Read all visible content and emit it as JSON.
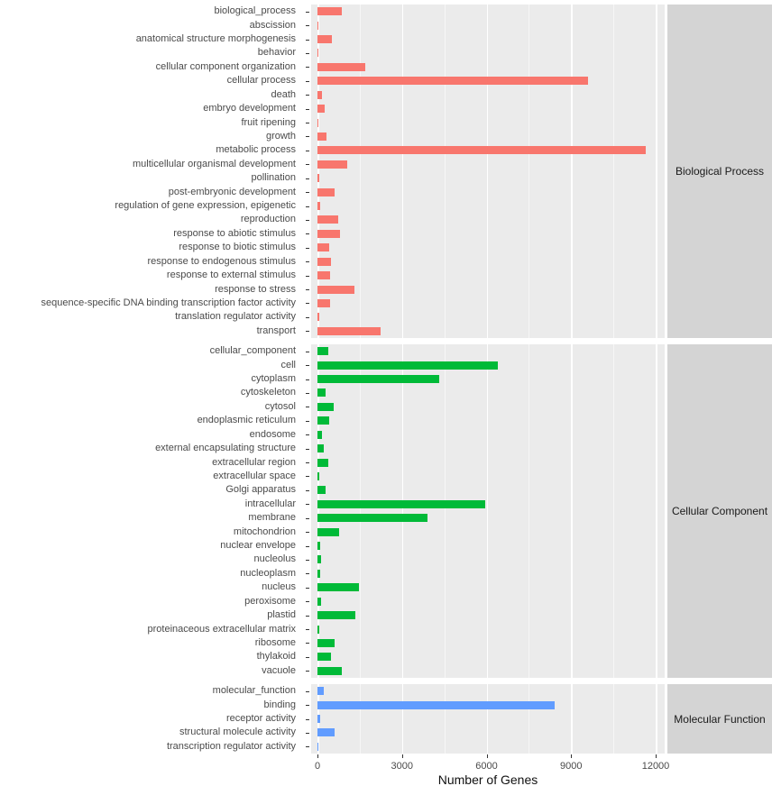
{
  "chart_data": {
    "type": "bar",
    "orientation": "horizontal",
    "title": "",
    "xlabel": "Number of Genes",
    "ylabel": "",
    "xlim": [
      0,
      12400
    ],
    "x_ticks": [
      0,
      3000,
      6000,
      9000,
      12000
    ],
    "x_tick_labels": [
      "0",
      "3000",
      "6000",
      "9000",
      "12000"
    ],
    "x_minor_ticks": [
      1500,
      4500,
      7500,
      10500
    ],
    "grid": true,
    "legend": "none",
    "panel_bg": "#EBEBEB",
    "strip_bg": "#D4D4D4",
    "grid_color": "#FFFFFF",
    "axis_text_color": "#4A4A4A",
    "facets": [
      {
        "label": "Biological Process",
        "color": "#F8766D",
        "categories": [
          "biological_process",
          "abscission",
          "anatomical structure morphogenesis",
          "behavior",
          "cellular component organization",
          "cellular process",
          "death",
          "embryo development",
          "fruit ripening",
          "growth",
          "metabolic process",
          "multicellular organismal development",
          "pollination",
          "post-embryonic development",
          "regulation of gene expression, epigenetic",
          "reproduction",
          "response to abiotic stimulus",
          "response to biotic stimulus",
          "response to endogenous stimulus",
          "response to external stimulus",
          "response to stress",
          "sequence-specific DNA binding transcription factor activity",
          "translation regulator activity",
          "transport"
        ],
        "values": [
          850,
          15,
          500,
          25,
          1700,
          9600,
          160,
          260,
          25,
          320,
          11650,
          1050,
          60,
          610,
          100,
          740,
          800,
          420,
          480,
          450,
          1310,
          450,
          60,
          2240
        ]
      },
      {
        "label": "Cellular Component",
        "color": "#00BA38",
        "categories": [
          "cellular_component",
          "cell",
          "cytoplasm",
          "cytoskeleton",
          "cytosol",
          "endoplasmic reticulum",
          "endosome",
          "external encapsulating structure",
          "extracellular region",
          "extracellular space",
          "Golgi apparatus",
          "intracellular",
          "membrane",
          "mitochondrion",
          "nuclear envelope",
          "nucleolus",
          "nucleoplasm",
          "nucleus",
          "peroxisome",
          "plastid",
          "proteinaceous extracellular matrix",
          "ribosome",
          "thylakoid",
          "vacuole"
        ],
        "values": [
          380,
          6400,
          4320,
          290,
          580,
          420,
          160,
          230,
          380,
          70,
          290,
          5950,
          3900,
          770,
          100,
          130,
          100,
          1470,
          130,
          1340,
          50,
          610,
          480,
          860
        ]
      },
      {
        "label": "Molecular Function",
        "color": "#619CFF",
        "categories": [
          "molecular_function",
          "binding",
          "receptor activity",
          "structural molecule activity",
          "transcription regulator activity"
        ],
        "values": [
          230,
          8400,
          100,
          610,
          40
        ]
      }
    ]
  }
}
